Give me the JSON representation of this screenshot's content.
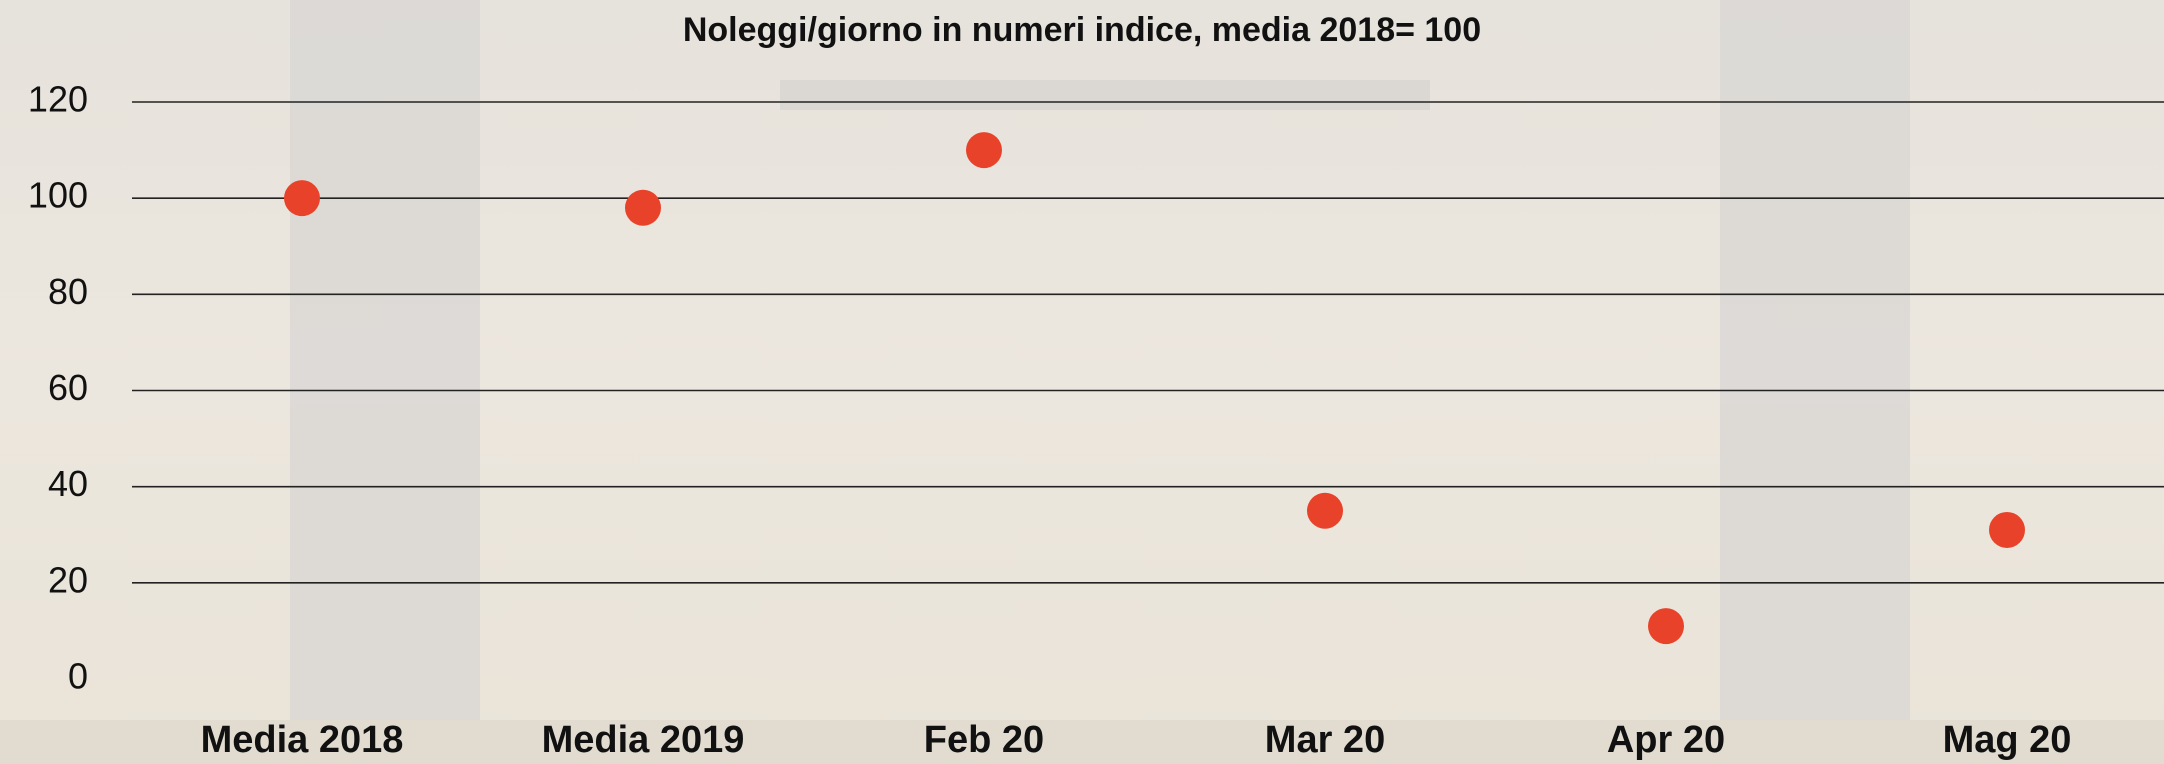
{
  "chart_data": {
    "type": "scatter",
    "title": "Noleggi/giorno in numeri indice, media 2018= 100",
    "categories": [
      "Media 2018",
      "Media 2019",
      "Feb 20",
      "Mar 20",
      "Apr 20",
      "Mag 20"
    ],
    "values": [
      100,
      98,
      110,
      35,
      11,
      31
    ],
    "color": "#e8432a",
    "ylim": [
      0,
      120
    ],
    "yticks": [
      0,
      20,
      40,
      60,
      80,
      100,
      120
    ],
    "grid": true
  }
}
